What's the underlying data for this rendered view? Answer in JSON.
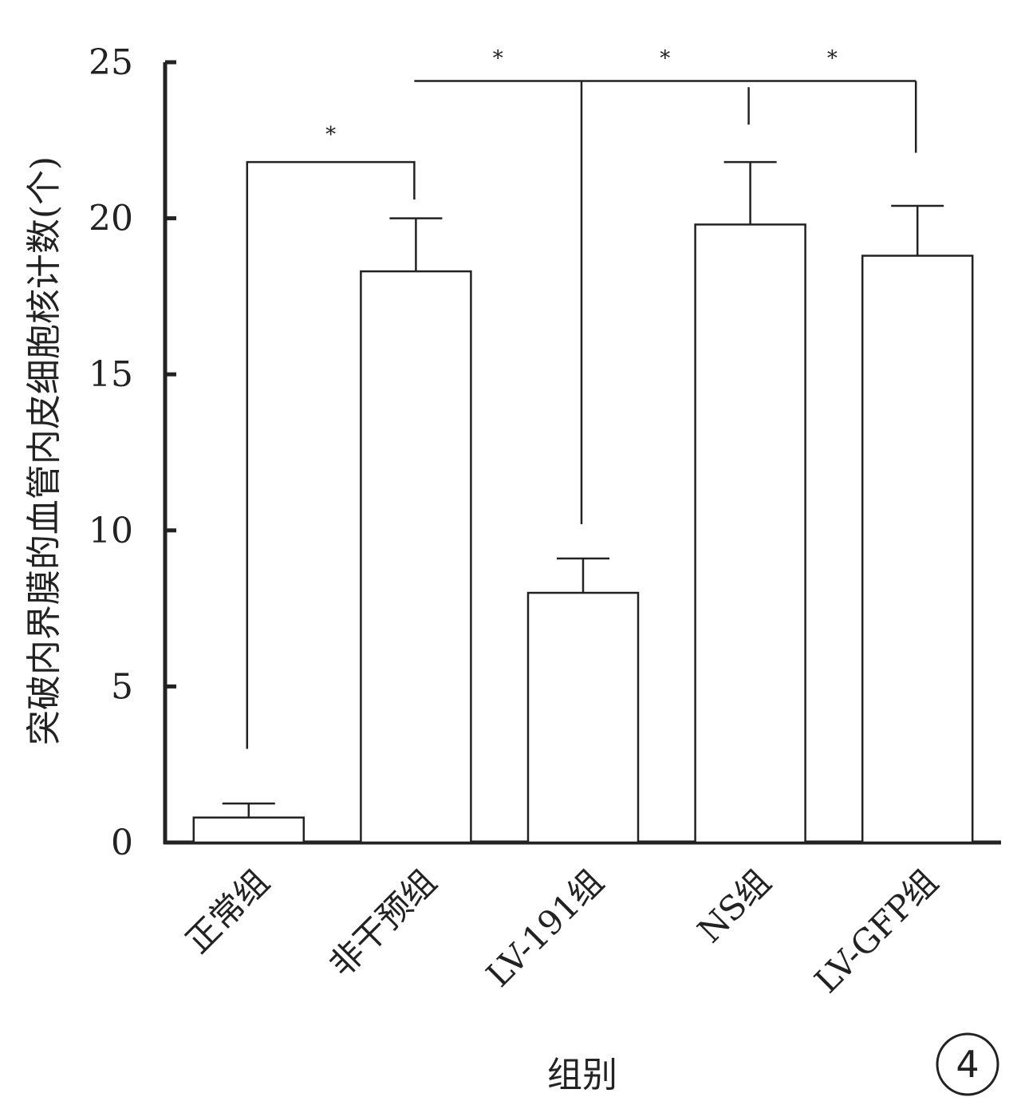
{
  "chart_data": {
    "type": "bar",
    "categories": [
      "正常组",
      "非干预组",
      "LV-191组",
      "NS组",
      "LV-GFP组"
    ],
    "values": [
      0.8,
      18.3,
      8.0,
      19.8,
      18.8
    ],
    "error_upper": [
      1.25,
      20.0,
      9.1,
      21.8,
      20.4
    ],
    "xlabel": "组别",
    "ylabel": "突破内界膜的血管内皮细胞核计数(个)",
    "ylim": [
      0,
      25
    ],
    "yticks": [
      0,
      5,
      10,
      15,
      20,
      25
    ],
    "grid": false,
    "significance_marker": "*",
    "significance_pairs": [
      {
        "from": 0,
        "to": 1,
        "label": "*"
      },
      {
        "from": 1,
        "to": 2,
        "label": "*"
      },
      {
        "from": 2,
        "to": 3,
        "label": "*"
      },
      {
        "from": 2,
        "to": 4,
        "label": "*"
      }
    ],
    "panel_label": "4"
  }
}
